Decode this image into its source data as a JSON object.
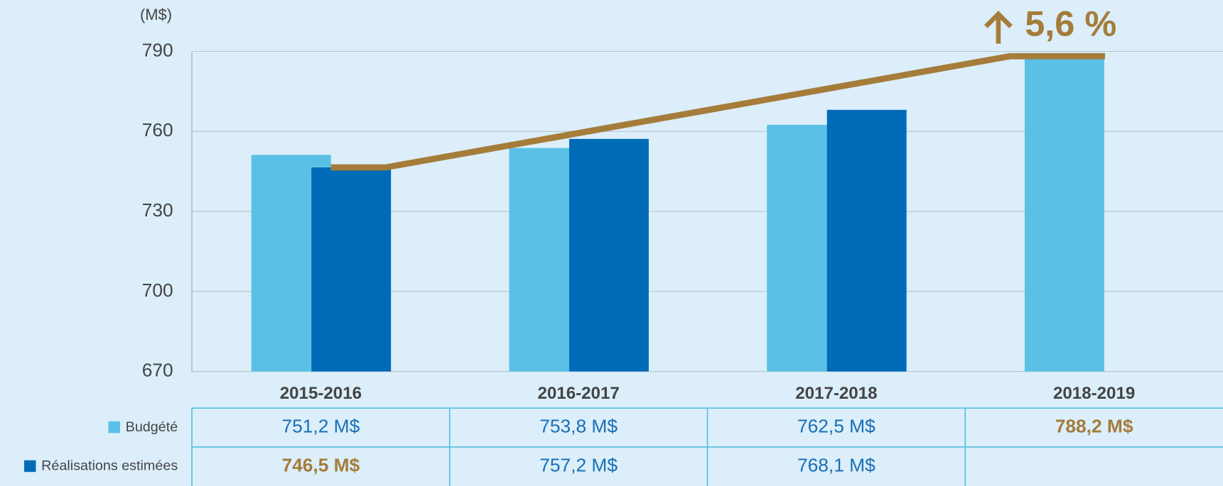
{
  "chart_data": {
    "type": "bar",
    "y_unit_label": "(M$)",
    "annotation": "5,6 %",
    "categories": [
      "2015-2016",
      "2016-2017",
      "2017-2018",
      "2018-2019"
    ],
    "series": [
      {
        "name": "Budgété",
        "color": "#5bc0e6",
        "values": [
          751.2,
          753.8,
          762.5,
          788.2
        ],
        "value_labels": [
          "751,2 M$",
          "753,8 M$",
          "762,5 M$",
          "788,2 M$"
        ],
        "value_label_colors": [
          "#1a6fb5",
          "#1a6fb5",
          "#1a6fb5",
          "#a57c3a"
        ]
      },
      {
        "name": "Réalisations estimées",
        "color": "#006bb6",
        "values": [
          746.5,
          757.2,
          768.1,
          null
        ],
        "value_labels": [
          "746,5 M$",
          "757,2 M$",
          "768,1 M$",
          null
        ],
        "value_label_colors": [
          "#a57c3a",
          "#1a6fb5",
          "#1a6fb5",
          null
        ]
      }
    ],
    "trend_color": "#a57c3a",
    "ylim": [
      670,
      790
    ],
    "yticks": [
      670,
      700,
      730,
      760,
      790
    ],
    "grid": true
  }
}
